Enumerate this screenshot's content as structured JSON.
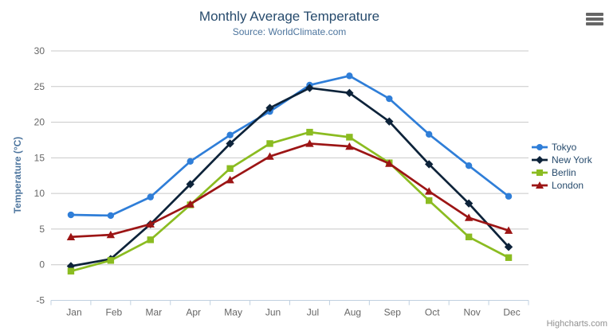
{
  "chart_data": {
    "type": "line",
    "title": "Monthly Average Temperature",
    "subtitle": "Source: WorldClimate.com",
    "xlabel": "",
    "ylabel": "Temperature (°C)",
    "categories": [
      "Jan",
      "Feb",
      "Mar",
      "Apr",
      "May",
      "Jun",
      "Jul",
      "Aug",
      "Sep",
      "Oct",
      "Nov",
      "Dec"
    ],
    "ylim": [
      -5,
      30
    ],
    "y_ticks": [
      -5,
      0,
      5,
      10,
      15,
      20,
      25,
      30
    ],
    "grid": "horizontal",
    "legend_position": "right",
    "series": [
      {
        "name": "Tokyo",
        "color": "#2f7ed8",
        "marker": "circle",
        "values": [
          7.0,
          6.9,
          9.5,
          14.5,
          18.2,
          21.5,
          25.2,
          26.5,
          23.3,
          18.3,
          13.9,
          9.6
        ]
      },
      {
        "name": "New York",
        "color": "#0d233a",
        "marker": "diamond",
        "values": [
          -0.2,
          0.8,
          5.7,
          11.3,
          17.0,
          22.0,
          24.8,
          24.1,
          20.1,
          14.1,
          8.6,
          2.5
        ]
      },
      {
        "name": "Berlin",
        "color": "#8bbc21",
        "marker": "square",
        "values": [
          -0.9,
          0.6,
          3.5,
          8.4,
          13.5,
          17.0,
          18.6,
          17.9,
          14.3,
          9.0,
          3.9,
          1.0
        ]
      },
      {
        "name": "London",
        "color": "#9c1515",
        "marker": "triangle",
        "values": [
          3.9,
          4.2,
          5.7,
          8.5,
          11.9,
          15.2,
          17.0,
          16.6,
          14.2,
          10.3,
          6.6,
          4.8
        ]
      }
    ],
    "style": {
      "title_color": "#274b6d",
      "subtitle_color": "#4d759e",
      "axis_label_color": "#666666",
      "axis_title_color": "#4d759e",
      "legend_text_color": "#274b6d",
      "grid_color": "#c8c8c8",
      "axis_line_color": "#c0d0e0",
      "credit_color": "#909090"
    }
  },
  "ui": {
    "export_menu_icon": "hamburger-icon",
    "credit": "Highcharts.com"
  }
}
